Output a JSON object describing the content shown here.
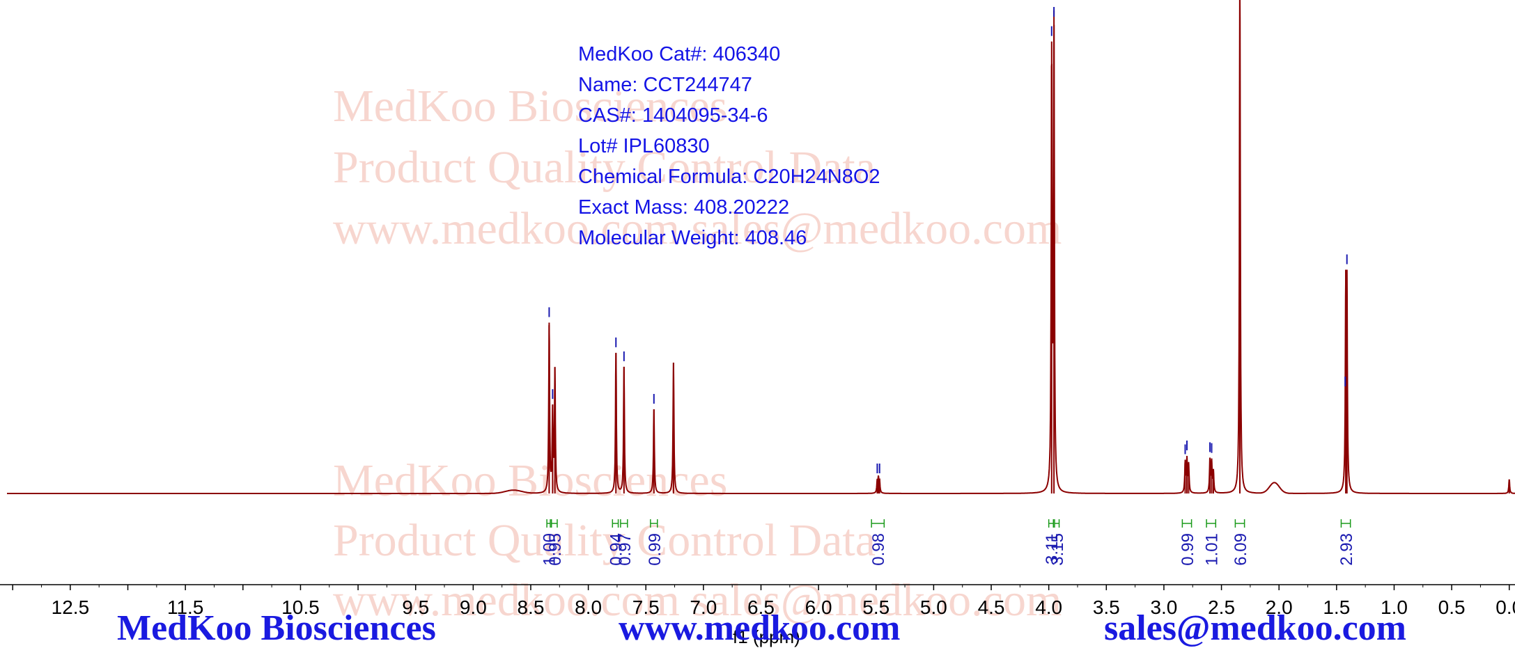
{
  "watermark": {
    "line1": "MedKoo Biosciences",
    "line2": "Product Quality Control Data",
    "line3": "www.medkoo.com   sales@medkoo.com"
  },
  "compound_info": {
    "cat": "MedKoo Cat#: 406340",
    "name": "Name: CCT244747",
    "cas": "CAS#: 1404095-34-6",
    "lot": "Lot# IPL60830",
    "formula": "Chemical Formula: C20H24N8O2",
    "exact_mass": "Exact Mass: 408.20222",
    "mw": "Molecular Weight: 408.46"
  },
  "footer": {
    "company": "MedKoo Biosciences",
    "website": "www.medkoo.com",
    "email": "sales@medkoo.com"
  },
  "colors": {
    "spectrum": "#8b0000",
    "peak_marker": "#1a1ab0",
    "integral": "#1a9a1a",
    "integral_label": "#1a1ab0",
    "info_text": "#1414e6",
    "footer_text": "#1a1ae0",
    "watermark": "#f7d6cf"
  },
  "chart_data": {
    "type": "line",
    "title": "",
    "xlabel": "f1 (ppm)",
    "ylabel": "",
    "x_reversed": true,
    "xlim": [
      13.05,
      -0.05
    ],
    "ylim": [
      0,
      1.0
    ],
    "x_ticks": [
      12.5,
      11.5,
      10.5,
      9.5,
      9.0,
      8.5,
      8.0,
      7.5,
      7.0,
      6.5,
      6.0,
      5.5,
      5.0,
      4.5,
      4.0,
      3.5,
      3.0,
      2.5,
      2.0,
      1.5,
      1.0,
      0.5,
      0.0
    ],
    "x_tick_labels": [
      "12.5",
      "11.5",
      "10.5",
      "9.5",
      "9.0",
      "8.5",
      "8.0",
      "7.5",
      "7.0",
      "6.5",
      "6.0",
      "5.5",
      "5.0",
      "4.5",
      "4.0",
      "3.5",
      "3.0",
      "2.5",
      "2.0",
      "1.5",
      "1.0",
      "0.5",
      "0.0"
    ],
    "grid": false,
    "peaks": [
      {
        "ppm": 8.34,
        "intensity": 0.36
      },
      {
        "ppm": 8.31,
        "intensity": 0.17
      },
      {
        "ppm": 8.29,
        "intensity": 0.26
      },
      {
        "ppm": 7.76,
        "intensity": 0.3
      },
      {
        "ppm": 7.69,
        "intensity": 0.27
      },
      {
        "ppm": 7.43,
        "intensity": 0.18
      },
      {
        "ppm": 7.26,
        "intensity": 0.28
      },
      {
        "ppm": 5.49,
        "intensity": 0.025
      },
      {
        "ppm": 5.48,
        "intensity": 0.03
      },
      {
        "ppm": 5.47,
        "intensity": 0.025
      },
      {
        "ppm": 3.975,
        "intensity": 0.92
      },
      {
        "ppm": 3.955,
        "intensity": 0.99
      },
      {
        "ppm": 2.815,
        "intensity": 0.065
      },
      {
        "ppm": 2.8,
        "intensity": 0.07
      },
      {
        "ppm": 2.785,
        "intensity": 0.06
      },
      {
        "ppm": 2.6,
        "intensity": 0.07
      },
      {
        "ppm": 2.585,
        "intensity": 0.065
      },
      {
        "ppm": 2.57,
        "intensity": 0.045
      },
      {
        "ppm": 2.34,
        "intensity": 1.12
      },
      {
        "ppm": 1.42,
        "intensity": 0.41
      },
      {
        "ppm": 1.41,
        "intensity": 0.41
      },
      {
        "ppm": 0.0,
        "intensity": 0.03
      }
    ],
    "broad_bumps": [
      {
        "ppm": 8.65,
        "height": 0.007,
        "width": 0.1
      },
      {
        "ppm": 2.04,
        "height": 0.023,
        "width": 0.06
      }
    ],
    "peak_markers": [
      8.34,
      8.31,
      7.76,
      7.69,
      7.43,
      5.49,
      5.47,
      3.975,
      3.955,
      2.815,
      2.8,
      2.6,
      2.585,
      1.425,
      1.41
    ],
    "integrals": [
      {
        "from": 8.36,
        "to": 8.33,
        "value": "1.00"
      },
      {
        "from": 8.32,
        "to": 8.27,
        "value": "0.95"
      },
      {
        "from": 7.79,
        "to": 7.74,
        "value": "0.94"
      },
      {
        "from": 7.72,
        "to": 7.66,
        "value": "0.97"
      },
      {
        "from": 7.46,
        "to": 7.4,
        "value": "0.99"
      },
      {
        "from": 5.54,
        "to": 5.43,
        "value": "0.98"
      },
      {
        "from": 4.0,
        "to": 3.96,
        "value": "3.11"
      },
      {
        "from": 3.95,
        "to": 3.91,
        "value": "3.15"
      },
      {
        "from": 2.84,
        "to": 2.76,
        "value": "0.99"
      },
      {
        "from": 2.63,
        "to": 2.55,
        "value": "1.01"
      },
      {
        "from": 2.38,
        "to": 2.3,
        "value": "6.09"
      },
      {
        "from": 1.46,
        "to": 1.38,
        "value": "2.93"
      }
    ]
  }
}
